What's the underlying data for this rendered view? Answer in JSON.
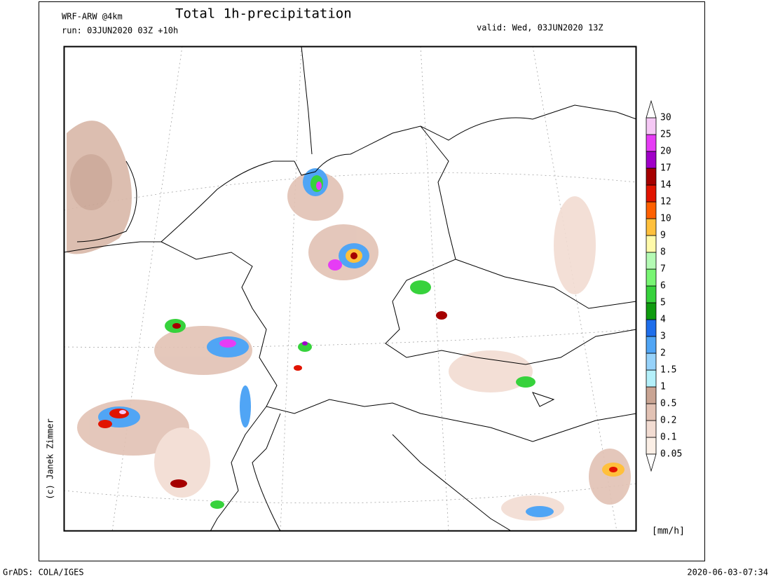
{
  "header": {
    "model": "WRF-ARW @4km",
    "title": "Total 1h-precipitation",
    "run": "run: 03JUN2020 03Z +10h",
    "valid": "valid: Wed, 03JUN2020 13Z"
  },
  "copyright": "(c) Janek Zimmer",
  "legend": {
    "unit": "[mm/h]",
    "levels": [
      0.05,
      0.1,
      0.2,
      0.5,
      1,
      1.5,
      2,
      3,
      4,
      5,
      6,
      7,
      8,
      9,
      10,
      12,
      14,
      17,
      20,
      25,
      30
    ],
    "colors": [
      "#fbefe6",
      "#f2dcd2",
      "#e2c2b4",
      "#c9a493",
      "#b4f0fa",
      "#96d2fa",
      "#50a5f5",
      "#1e6eeb",
      "#0f9b0f",
      "#37d23c",
      "#78f573",
      "#b4fab4",
      "#fffaaa",
      "#ffc03c",
      "#ff6000",
      "#e11400",
      "#a50000",
      "#a000c8",
      "#e63cf5",
      "#f5c8f5"
    ]
  },
  "footer": {
    "left": "GrADS: COLA/IGES",
    "right": "2020-06-03-07:34"
  }
}
